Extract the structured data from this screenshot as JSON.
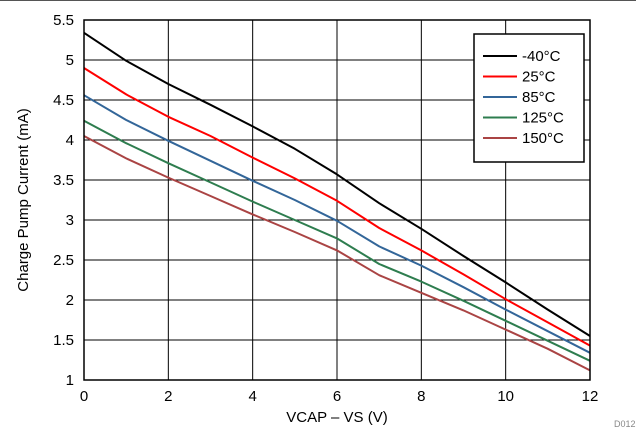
{
  "chart_data": {
    "type": "line",
    "title": "",
    "xlabel": "VCAP – VS (V)",
    "ylabel": "Charge Pump Current (mA)",
    "xlim": [
      0,
      12
    ],
    "ylim": [
      1,
      5.5
    ],
    "x_ticks": [
      "0",
      "2",
      "4",
      "6",
      "8",
      "10",
      "12"
    ],
    "y_ticks": [
      "1",
      "1.5",
      "2",
      "2.5",
      "3",
      "3.5",
      "4",
      "4.5",
      "5",
      "5.5"
    ],
    "grid": true,
    "legend_position": "top-right",
    "figure_id": "D012",
    "series": [
      {
        "name": "-40°C",
        "color": "#000000",
        "x": [
          0,
          1,
          2,
          3,
          4,
          5,
          6,
          7,
          8,
          9,
          10,
          11,
          12
        ],
        "y": [
          5.34,
          4.99,
          4.7,
          4.44,
          4.17,
          3.89,
          3.57,
          3.21,
          2.89,
          2.55,
          2.22,
          1.88,
          1.55
        ]
      },
      {
        "name": "25°C",
        "color": "#ff0000",
        "x": [
          0,
          1,
          2,
          3,
          4,
          5,
          6,
          7,
          8,
          9,
          10,
          11,
          12
        ],
        "y": [
          4.9,
          4.57,
          4.29,
          4.05,
          3.78,
          3.52,
          3.24,
          2.9,
          2.62,
          2.32,
          2.01,
          1.72,
          1.43
        ]
      },
      {
        "name": "85°C",
        "color": "#336699",
        "x": [
          0,
          1,
          2,
          3,
          4,
          5,
          6,
          7,
          8,
          9,
          10,
          11,
          12
        ],
        "y": [
          4.56,
          4.25,
          3.99,
          3.74,
          3.49,
          3.25,
          2.99,
          2.67,
          2.43,
          2.16,
          1.88,
          1.61,
          1.34
        ]
      },
      {
        "name": "125°C",
        "color": "#2e7d4f",
        "x": [
          0,
          1,
          2,
          3,
          4,
          5,
          6,
          7,
          8,
          9,
          10,
          11,
          12
        ],
        "y": [
          4.24,
          3.96,
          3.71,
          3.47,
          3.23,
          3.0,
          2.77,
          2.45,
          2.23,
          1.99,
          1.74,
          1.49,
          1.24
        ]
      },
      {
        "name": "150°C",
        "color": "#aa4444",
        "x": [
          0,
          1,
          2,
          3,
          4,
          5,
          6,
          7,
          8,
          9,
          10,
          11,
          12
        ],
        "y": [
          4.05,
          3.77,
          3.53,
          3.3,
          3.07,
          2.85,
          2.62,
          2.31,
          2.09,
          1.87,
          1.63,
          1.39,
          1.12
        ]
      }
    ]
  }
}
